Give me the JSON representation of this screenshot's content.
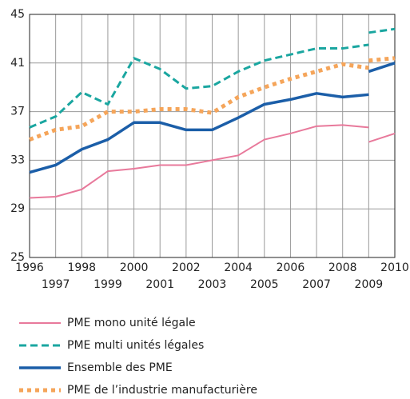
{
  "chart_data": {
    "type": "line",
    "x": [
      1996,
      1997,
      1998,
      1999,
      2000,
      2001,
      2002,
      2003,
      2004,
      2005,
      2006,
      2007,
      2008,
      2009
    ],
    "x_new": [
      2009,
      2010
    ],
    "xlim": [
      1996,
      2010
    ],
    "xticks": [
      1996,
      1997,
      1998,
      1999,
      2000,
      2001,
      2002,
      2003,
      2004,
      2005,
      2006,
      2007,
      2008,
      2009,
      2010
    ],
    "ylim": [
      25,
      45
    ],
    "yticks": [
      25,
      29,
      33,
      37,
      41,
      45
    ],
    "grid": true,
    "series": [
      {
        "name": "PME mono unité légale",
        "color": "#e8799b",
        "dash": "solid",
        "values": [
          29.9,
          30.0,
          30.6,
          32.1,
          32.3,
          32.6,
          32.6,
          33.0,
          33.4,
          34.7,
          35.2,
          35.8,
          35.9,
          35.7
        ],
        "values_new": [
          34.5,
          35.2
        ]
      },
      {
        "name": "PME multi unités légales",
        "color": "#1aa6a0",
        "dash": "dashed",
        "values": [
          35.7,
          36.6,
          38.6,
          37.6,
          41.4,
          40.5,
          38.9,
          39.1,
          40.3,
          41.2,
          41.7,
          42.2,
          42.2,
          42.5
        ],
        "values_new": [
          43.5,
          43.8
        ]
      },
      {
        "name": "Ensemble des PME",
        "color": "#1b5ea8",
        "dash": "solid",
        "values": [
          32.0,
          32.6,
          33.9,
          34.7,
          36.1,
          36.1,
          35.5,
          35.5,
          36.5,
          37.6,
          38.0,
          38.5,
          38.2,
          38.4
        ],
        "values_new": [
          40.3,
          41.0
        ]
      },
      {
        "name": "PME de l’industrie manufacturière",
        "color": "#f5a55a",
        "dash": "dotted",
        "values": [
          34.7,
          35.5,
          35.8,
          37.0,
          37.0,
          37.2,
          37.2,
          36.9,
          38.2,
          39.0,
          39.7,
          40.3,
          40.9,
          40.6
        ],
        "values_new": [
          41.2,
          41.4
        ]
      }
    ]
  }
}
